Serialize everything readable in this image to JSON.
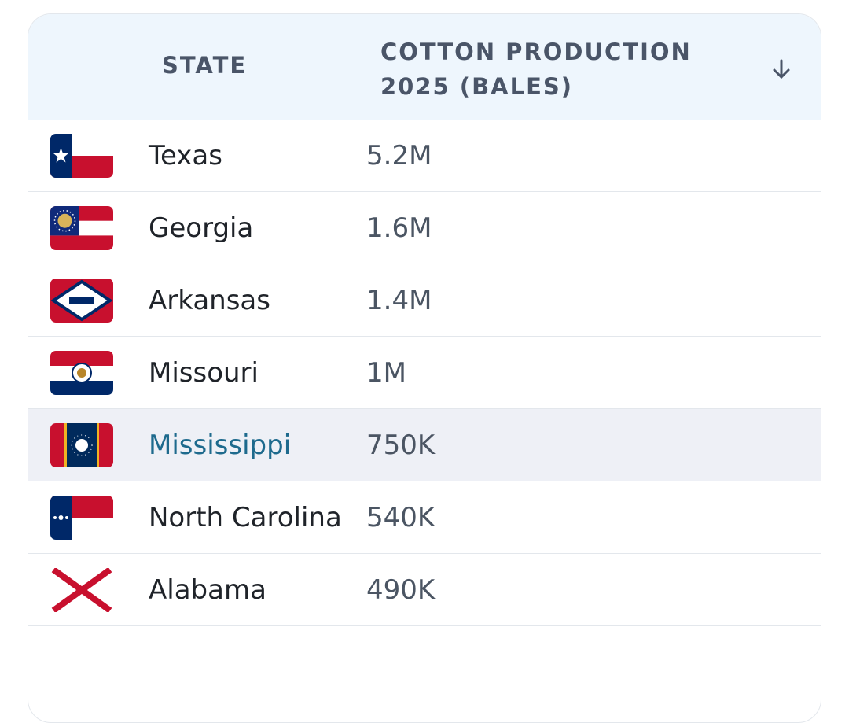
{
  "header": {
    "columns": [
      "STATE",
      "COTTON PRODUCTION 2025 (BALES)"
    ]
  },
  "table": {
    "rows": [
      [
        "Texas",
        "5.2M"
      ],
      [
        "Georgia",
        "1.6M"
      ],
      [
        "Arkansas",
        "1.4M"
      ],
      [
        "Missouri",
        "1M"
      ],
      [
        "Mississippi",
        "750K"
      ],
      [
        "North Carolina",
        "540K"
      ],
      [
        "Alabama",
        "490K"
      ]
    ]
  }
}
